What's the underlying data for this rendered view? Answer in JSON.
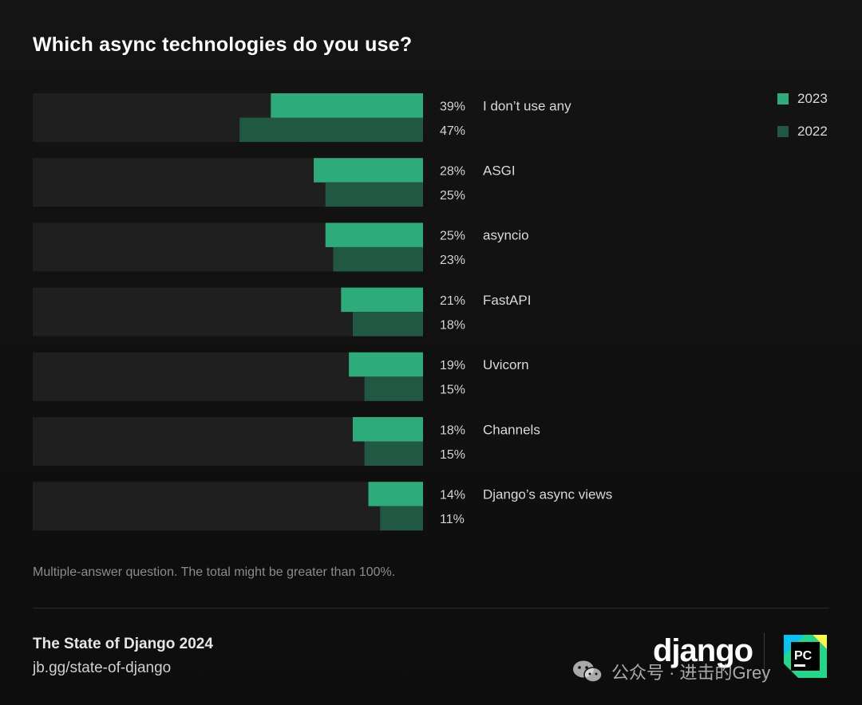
{
  "title": "Which async technologies do you use?",
  "chart_data": {
    "type": "bar",
    "orientation": "horizontal",
    "categories": [
      "I don’t use any",
      "ASGI",
      "asyncio",
      "FastAPI",
      "Uvicorn",
      "Channels",
      "Django’s async views"
    ],
    "series": [
      {
        "name": "2023",
        "values": [
          39,
          28,
          25,
          21,
          19,
          18,
          14
        ],
        "color": "#2eab7a"
      },
      {
        "name": "2022",
        "values": [
          47,
          25,
          23,
          18,
          15,
          15,
          11
        ],
        "color": "#215844"
      }
    ],
    "value_labels": {
      "2023": [
        "39%",
        "28%",
        "25%",
        "21%",
        "19%",
        "18%",
        "14%"
      ],
      "2022": [
        "47%",
        "25%",
        "23%",
        "18%",
        "15%",
        "15%",
        "11%"
      ]
    },
    "xlim": [
      0,
      100
    ],
    "legend_position": "top-right",
    "track_color": "#1f1f1f"
  },
  "note": "Multiple-answer question. The total might be greater than 100%.",
  "footer": {
    "title": "The State of Django 2024",
    "url": "jb.gg/state-of-django",
    "brand": "django",
    "pc_badge": "PC"
  },
  "watermark": "公众号 · 进击的Grey",
  "icons": [
    "wechat-icon",
    "pycharm-icon"
  ]
}
